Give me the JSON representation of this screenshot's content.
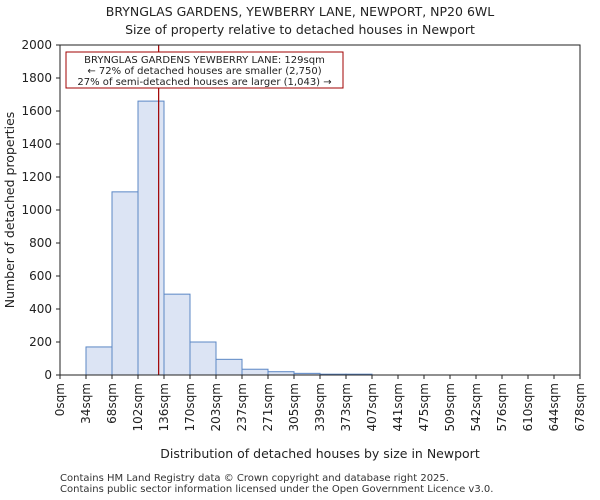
{
  "header": {
    "title": "BRYNGLAS GARDENS, YEWBERRY LANE, NEWPORT, NP20 6WL",
    "subtitle": "Size of property relative to detached houses in Newport"
  },
  "footer": {
    "line1": "Contains HM Land Registry data © Crown copyright and database right 2025.",
    "line2": "Contains public sector information licensed under the Open Government Licence v3.0."
  },
  "chart_data": {
    "type": "bar",
    "title": "BRYNGLAS GARDENS, YEWBERRY LANE, NEWPORT, NP20 6WL",
    "subtitle": "Size of property relative to detached houses in Newport",
    "xlabel": "Distribution of detached houses by size in Newport",
    "ylabel": "Number of detached properties",
    "bin_edges": [
      0,
      34,
      68,
      102,
      136,
      170,
      203,
      237,
      271,
      305,
      339,
      373,
      407,
      441,
      475,
      509,
      542,
      576,
      610,
      644,
      678
    ],
    "x_tick_labels": [
      "0sqm",
      "34sqm",
      "68sqm",
      "102sqm",
      "136sqm",
      "170sqm",
      "203sqm",
      "237sqm",
      "271sqm",
      "305sqm",
      "339sqm",
      "373sqm",
      "407sqm",
      "441sqm",
      "475sqm",
      "509sqm",
      "542sqm",
      "576sqm",
      "610sqm",
      "644sqm",
      "678sqm"
    ],
    "values": [
      0,
      170,
      1110,
      1660,
      490,
      200,
      95,
      35,
      20,
      10,
      5,
      5,
      0,
      0,
      0,
      0,
      0,
      0,
      0,
      0
    ],
    "ylim": [
      0,
      2000
    ],
    "y_ticks": [
      0,
      200,
      400,
      600,
      800,
      1000,
      1200,
      1400,
      1600,
      1800,
      2000
    ],
    "grid": false,
    "bar_fill": "#dce4f4",
    "bar_edge": "#5b87c5",
    "marker": {
      "value": 129,
      "color": "#a00000"
    },
    "annotation": {
      "line1": "BRYNGLAS GARDENS YEWBERRY LANE: 129sqm",
      "line2": "← 72% of detached houses are smaller (2,750)",
      "line3": "27% of semi-detached houses are larger (1,043) →"
    }
  }
}
